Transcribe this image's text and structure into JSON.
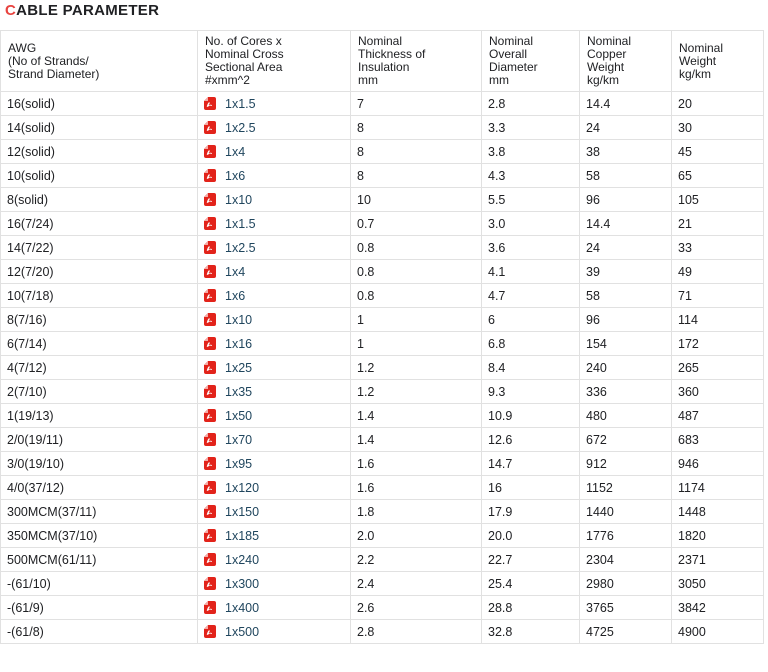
{
  "header": {
    "title_accent": "C",
    "title_rest": "ABLE PARAMETER"
  },
  "colors": {
    "accent_red": "#e8433f",
    "pdf_icon_red": "#e2231a",
    "link_blue": "#20465e",
    "row_border": "#e1e1e1",
    "text": "#202124"
  },
  "icons": {
    "pdf_icon": "pdf-file-icon"
  },
  "table": {
    "columns": [
      {
        "key": "awg",
        "label": "AWG\n(No of Strands/\nStrand Diameter)"
      },
      {
        "key": "area",
        "label": "No. of Cores x\nNominal Cross\nSectional Area\n#xmm^2"
      },
      {
        "key": "thickness",
        "label": "Nominal\nThickness of\nInsulation\nmm"
      },
      {
        "key": "diameter",
        "label": "Nominal\nOverall\nDiameter\nmm"
      },
      {
        "key": "copper",
        "label": "Nominal\nCopper\nWeight\nkg/km"
      },
      {
        "key": "weight",
        "label": "Nominal\nWeight\nkg/km"
      }
    ],
    "rows": [
      {
        "awg": "16(solid)",
        "area": "1x1.5",
        "thickness": "7",
        "diameter": "2.8",
        "copper": "14.4",
        "weight": "20"
      },
      {
        "awg": "14(solid)",
        "area": "1x2.5",
        "thickness": "8",
        "diameter": "3.3",
        "copper": "24",
        "weight": "30"
      },
      {
        "awg": "12(solid)",
        "area": "1x4",
        "thickness": "8",
        "diameter": "3.8",
        "copper": "38",
        "weight": "45"
      },
      {
        "awg": "10(solid)",
        "area": "1x6",
        "thickness": "8",
        "diameter": "4.3",
        "copper": "58",
        "weight": "65"
      },
      {
        "awg": "8(solid)",
        "area": "1x10",
        "thickness": "10",
        "diameter": "5.5",
        "copper": "96",
        "weight": "105"
      },
      {
        "awg": "16(7/24)",
        "area": "1x1.5",
        "thickness": "0.7",
        "diameter": "3.0",
        "copper": "14.4",
        "weight": "21"
      },
      {
        "awg": "14(7/22)",
        "area": "1x2.5",
        "thickness": "0.8",
        "diameter": "3.6",
        "copper": "24",
        "weight": "33"
      },
      {
        "awg": "12(7/20)",
        "area": "1x4",
        "thickness": "0.8",
        "diameter": "4.1",
        "copper": "39",
        "weight": "49"
      },
      {
        "awg": "10(7/18)",
        "area": "1x6",
        "thickness": "0.8",
        "diameter": "4.7",
        "copper": "58",
        "weight": "71"
      },
      {
        "awg": "8(7/16)",
        "area": "1x10",
        "thickness": "1",
        "diameter": "6",
        "copper": "96",
        "weight": "114"
      },
      {
        "awg": "6(7/14)",
        "area": "1x16",
        "thickness": "1",
        "diameter": "6.8",
        "copper": "154",
        "weight": "172"
      },
      {
        "awg": "4(7/12)",
        "area": "1x25",
        "thickness": "1.2",
        "diameter": "8.4",
        "copper": "240",
        "weight": "265"
      },
      {
        "awg": "2(7/10)",
        "area": "1x35",
        "thickness": "1.2",
        "diameter": "9.3",
        "copper": "336",
        "weight": "360"
      },
      {
        "awg": "1(19/13)",
        "area": "1x50",
        "thickness": "1.4",
        "diameter": "10.9",
        "copper": "480",
        "weight": "487"
      },
      {
        "awg": "2/0(19/11)",
        "area": "1x70",
        "thickness": "1.4",
        "diameter": "12.6",
        "copper": "672",
        "weight": "683"
      },
      {
        "awg": "3/0(19/10)",
        "area": "1x95",
        "thickness": "1.6",
        "diameter": "14.7",
        "copper": "912",
        "weight": "946"
      },
      {
        "awg": "4/0(37/12)",
        "area": "1x120",
        "thickness": "1.6",
        "diameter": "16",
        "copper": "1152",
        "weight": "1174"
      },
      {
        "awg": "300MCM(37/11)",
        "area": "1x150",
        "thickness": "1.8",
        "diameter": "17.9",
        "copper": "1440",
        "weight": "1448"
      },
      {
        "awg": "350MCM(37/10)",
        "area": "1x185",
        "thickness": "2.0",
        "diameter": "20.0",
        "copper": "1776",
        "weight": "1820"
      },
      {
        "awg": "500MCM(61/11)",
        "area": "1x240",
        "thickness": "2.2",
        "diameter": "22.7",
        "copper": "2304",
        "weight": "2371"
      },
      {
        "awg": "-(61/10)",
        "area": "1x300",
        "thickness": "2.4",
        "diameter": "25.4",
        "copper": "2980",
        "weight": "3050"
      },
      {
        "awg": "-(61/9)",
        "area": "1x400",
        "thickness": "2.6",
        "diameter": "28.8",
        "copper": "3765",
        "weight": "3842"
      },
      {
        "awg": "-(61/8)",
        "area": "1x500",
        "thickness": "2.8",
        "diameter": "32.8",
        "copper": "4725",
        "weight": "4900"
      }
    ]
  }
}
